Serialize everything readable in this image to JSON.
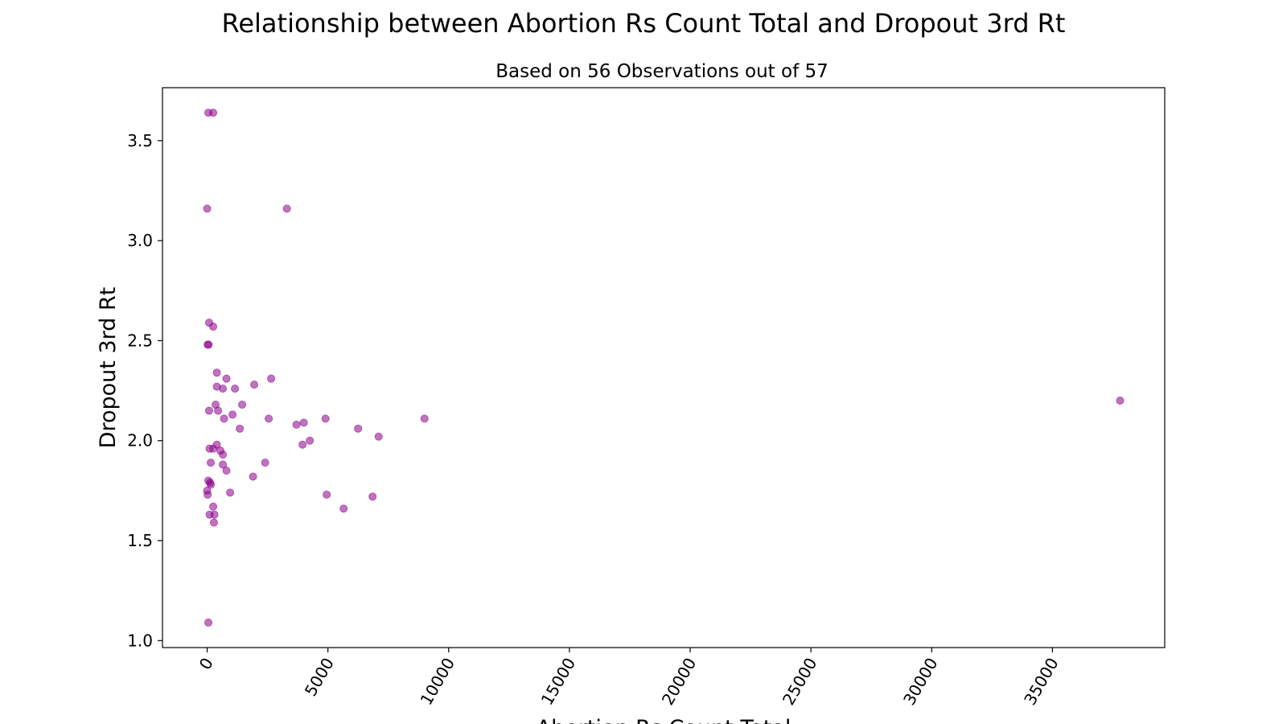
{
  "chart_data": {
    "type": "scatter",
    "title": "Relationship between Abortion Rs Count Total and Dropout 3rd Rt",
    "subtitle": "Based on 56 Observations out of 57",
    "xlabel": "Abortion Rs Count Total",
    "ylabel": "Dropout 3rd Rt",
    "xlim": [
      -1850,
      39650
    ],
    "ylim": [
      0.965,
      3.765
    ],
    "xticks": [
      0,
      5000,
      10000,
      15000,
      20000,
      25000,
      30000,
      35000
    ],
    "xtick_labels": [
      "0",
      "5000",
      "10000",
      "15000",
      "20000",
      "25000",
      "30000",
      "35000"
    ],
    "yticks": [
      1.0,
      1.5,
      2.0,
      2.5,
      3.0,
      3.5
    ],
    "ytick_labels": [
      "1.0",
      "1.5",
      "2.0",
      "2.5",
      "3.0",
      "3.5"
    ],
    "grid": false,
    "marker_color": "#8B008B",
    "points": [
      {
        "x": 50,
        "y": 3.64
      },
      {
        "x": 250,
        "y": 3.64
      },
      {
        "x": 0,
        "y": 3.16
      },
      {
        "x": 3300,
        "y": 3.16
      },
      {
        "x": 80,
        "y": 2.59
      },
      {
        "x": 250,
        "y": 2.57
      },
      {
        "x": 20,
        "y": 2.48
      },
      {
        "x": 60,
        "y": 2.48
      },
      {
        "x": 400,
        "y": 2.34
      },
      {
        "x": 800,
        "y": 2.31
      },
      {
        "x": 2650,
        "y": 2.31
      },
      {
        "x": 1950,
        "y": 2.28
      },
      {
        "x": 400,
        "y": 2.27
      },
      {
        "x": 650,
        "y": 2.26
      },
      {
        "x": 1150,
        "y": 2.26
      },
      {
        "x": 350,
        "y": 2.18
      },
      {
        "x": 1450,
        "y": 2.18
      },
      {
        "x": 37800,
        "y": 2.2
      },
      {
        "x": 80,
        "y": 2.15
      },
      {
        "x": 450,
        "y": 2.15
      },
      {
        "x": 1050,
        "y": 2.13
      },
      {
        "x": 700,
        "y": 2.11
      },
      {
        "x": 2550,
        "y": 2.11
      },
      {
        "x": 4900,
        "y": 2.11
      },
      {
        "x": 9000,
        "y": 2.11
      },
      {
        "x": 3700,
        "y": 2.08
      },
      {
        "x": 4000,
        "y": 2.09
      },
      {
        "x": 1350,
        "y": 2.06
      },
      {
        "x": 6250,
        "y": 2.06
      },
      {
        "x": 7100,
        "y": 2.02
      },
      {
        "x": 4250,
        "y": 2.0
      },
      {
        "x": 400,
        "y": 1.98
      },
      {
        "x": 3950,
        "y": 1.98
      },
      {
        "x": 100,
        "y": 1.96
      },
      {
        "x": 250,
        "y": 1.96
      },
      {
        "x": 550,
        "y": 1.95
      },
      {
        "x": 650,
        "y": 1.93
      },
      {
        "x": 2400,
        "y": 1.89
      },
      {
        "x": 150,
        "y": 1.89
      },
      {
        "x": 650,
        "y": 1.88
      },
      {
        "x": 800,
        "y": 1.85
      },
      {
        "x": 1900,
        "y": 1.82
      },
      {
        "x": 50,
        "y": 1.8
      },
      {
        "x": 120,
        "y": 1.79
      },
      {
        "x": 150,
        "y": 1.78
      },
      {
        "x": 0,
        "y": 1.75
      },
      {
        "x": 20,
        "y": 1.73
      },
      {
        "x": 950,
        "y": 1.74
      },
      {
        "x": 4950,
        "y": 1.73
      },
      {
        "x": 6850,
        "y": 1.72
      },
      {
        "x": 250,
        "y": 1.67
      },
      {
        "x": 5650,
        "y": 1.66
      },
      {
        "x": 100,
        "y": 1.63
      },
      {
        "x": 300,
        "y": 1.63
      },
      {
        "x": 280,
        "y": 1.59
      },
      {
        "x": 50,
        "y": 1.09
      }
    ]
  }
}
